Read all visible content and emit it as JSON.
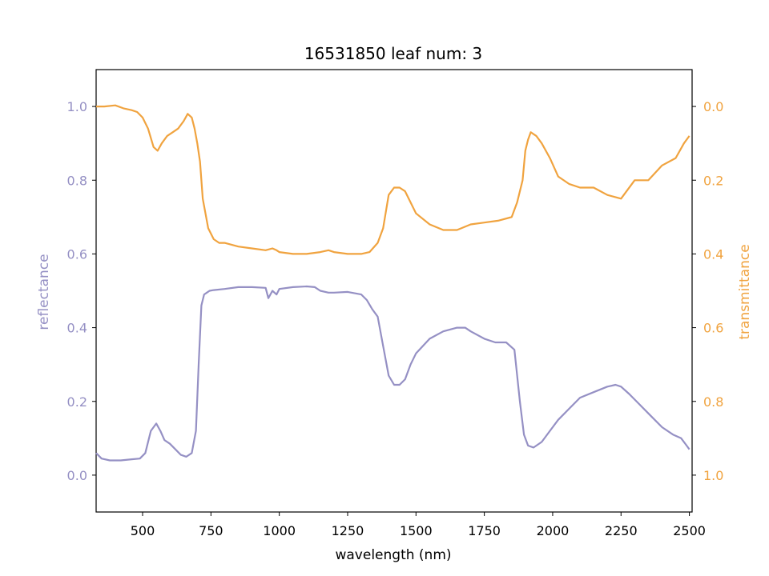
{
  "chart_data": {
    "type": "line",
    "title": "16531850 leaf num: 3",
    "xlabel": "wavelength (nm)",
    "ylabel_left": "reflectance",
    "ylabel_right": "transmittance",
    "xlim": [
      330,
      2510
    ],
    "ylim_left": [
      -0.1,
      1.1
    ],
    "ylim_right": [
      1.1,
      -0.1
    ],
    "right_axis_inverted": true,
    "x_ticks": [
      500,
      750,
      1000,
      1250,
      1500,
      1750,
      2000,
      2250,
      2500
    ],
    "y_ticks_left": [
      0.0,
      0.2,
      0.4,
      0.6,
      0.8,
      1.0
    ],
    "y_ticks_right": [
      0.0,
      0.2,
      0.4,
      0.6,
      0.8,
      1.0
    ],
    "colors": {
      "reflectance": "#9590c4",
      "transmittance": "#f0a33f"
    },
    "grid": false,
    "series": [
      {
        "key": "reflectance",
        "axis": "left",
        "x": [
          330,
          350,
          380,
          420,
          460,
          490,
          510,
          530,
          550,
          565,
          580,
          600,
          620,
          640,
          660,
          680,
          695,
          705,
          715,
          725,
          735,
          745,
          760,
          800,
          850,
          900,
          950,
          960,
          975,
          990,
          1000,
          1050,
          1100,
          1130,
          1150,
          1180,
          1200,
          1250,
          1300,
          1320,
          1340,
          1360,
          1380,
          1400,
          1420,
          1440,
          1460,
          1480,
          1500,
          1550,
          1600,
          1650,
          1680,
          1700,
          1750,
          1790,
          1830,
          1860,
          1880,
          1895,
          1910,
          1930,
          1960,
          1990,
          2020,
          2060,
          2100,
          2150,
          2200,
          2230,
          2250,
          2280,
          2320,
          2360,
          2400,
          2440,
          2470,
          2490,
          2500
        ],
        "y": [
          0.06,
          0.045,
          0.04,
          0.04,
          0.043,
          0.045,
          0.06,
          0.12,
          0.14,
          0.12,
          0.095,
          0.085,
          0.07,
          0.055,
          0.05,
          0.06,
          0.12,
          0.3,
          0.46,
          0.49,
          0.495,
          0.5,
          0.502,
          0.505,
          0.51,
          0.51,
          0.508,
          0.48,
          0.5,
          0.49,
          0.505,
          0.51,
          0.512,
          0.51,
          0.5,
          0.495,
          0.495,
          0.497,
          0.49,
          0.475,
          0.45,
          0.43,
          0.35,
          0.27,
          0.245,
          0.245,
          0.26,
          0.3,
          0.33,
          0.37,
          0.39,
          0.4,
          0.4,
          0.39,
          0.37,
          0.36,
          0.36,
          0.34,
          0.2,
          0.11,
          0.08,
          0.075,
          0.09,
          0.12,
          0.15,
          0.18,
          0.21,
          0.225,
          0.24,
          0.245,
          0.24,
          0.22,
          0.19,
          0.16,
          0.13,
          0.11,
          0.1,
          0.08,
          0.07
        ]
      },
      {
        "key": "transmittance",
        "axis": "right",
        "x": [
          330,
          360,
          400,
          430,
          460,
          480,
          500,
          520,
          540,
          555,
          570,
          590,
          610,
          630,
          650,
          665,
          680,
          690,
          700,
          710,
          720,
          740,
          760,
          780,
          800,
          850,
          900,
          950,
          975,
          990,
          1000,
          1050,
          1100,
          1150,
          1180,
          1200,
          1250,
          1300,
          1330,
          1360,
          1380,
          1400,
          1420,
          1440,
          1460,
          1480,
          1500,
          1550,
          1600,
          1650,
          1700,
          1750,
          1800,
          1850,
          1870,
          1890,
          1900,
          1910,
          1920,
          1940,
          1960,
          1990,
          2020,
          2060,
          2100,
          2150,
          2200,
          2250,
          2300,
          2350,
          2400,
          2450,
          2480,
          2500
        ],
        "y": [
          0.0,
          0.0,
          -0.003,
          0.005,
          0.01,
          0.015,
          0.03,
          0.06,
          0.11,
          0.12,
          0.1,
          0.08,
          0.07,
          0.06,
          0.04,
          0.02,
          0.03,
          0.06,
          0.1,
          0.15,
          0.25,
          0.33,
          0.36,
          0.37,
          0.37,
          0.38,
          0.385,
          0.39,
          0.385,
          0.39,
          0.395,
          0.4,
          0.4,
          0.395,
          0.39,
          0.395,
          0.4,
          0.4,
          0.395,
          0.37,
          0.33,
          0.24,
          0.22,
          0.22,
          0.23,
          0.26,
          0.29,
          0.32,
          0.335,
          0.335,
          0.32,
          0.315,
          0.31,
          0.3,
          0.26,
          0.2,
          0.12,
          0.09,
          0.07,
          0.08,
          0.1,
          0.14,
          0.19,
          0.21,
          0.22,
          0.22,
          0.24,
          0.25,
          0.2,
          0.2,
          0.16,
          0.14,
          0.1,
          0.08
        ]
      }
    ]
  }
}
